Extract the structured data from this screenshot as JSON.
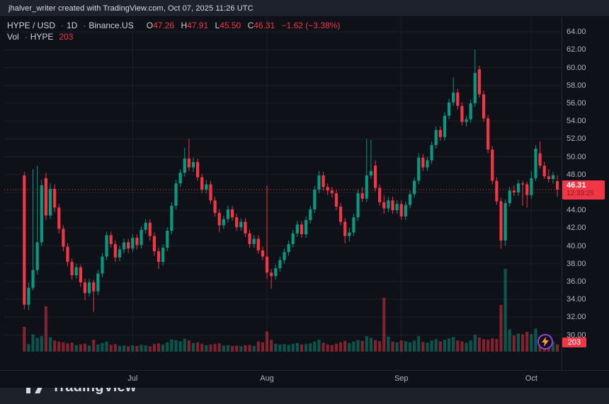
{
  "app": {
    "attribution": "jhalver_writer created with TradingView.com, Oct 07, 2025 11:26 UTC"
  },
  "legend": {
    "symbol": "HYPE / USD",
    "separator": "·",
    "interval": "1D",
    "exchange": "Binance.US",
    "ohlc": {
      "o_label": "O",
      "o": "47.26",
      "h_label": "H",
      "h": "47.91",
      "l_label": "L",
      "l": "45.50",
      "c_label": "C",
      "c": "46.31",
      "change": "−1.62 (−3.38%)"
    },
    "volume_row": {
      "label": "Vol",
      "separator": "·",
      "symbol": "HYPE",
      "value": "203"
    }
  },
  "price_scale": {
    "labels": [
      "64.00",
      "62.00",
      "60.00",
      "58.00",
      "56.00",
      "54.00",
      "52.00",
      "50.00",
      "48.00",
      "46.00",
      "44.00",
      "42.00",
      "40.00",
      "38.00",
      "36.00",
      "34.00",
      "32.00",
      "30.00"
    ],
    "last_price_label": "46.31",
    "countdown": "12:33:25",
    "volume_badge": "203"
  },
  "footer": {
    "brand": "TradingView"
  },
  "colors": {
    "up": "#089981",
    "down": "#f23645",
    "accent_red": "#f23645",
    "bg_chart": "#0e1117",
    "bg_chrome": "#1e222d",
    "text_primary": "#d1d4dc",
    "text_secondary": "#b2b5be",
    "grid": "#1b2029",
    "bolt_ring": "#9045d6",
    "bolt_fill": "#ff9d3c"
  },
  "chart_data": {
    "type": "candlestick",
    "title": "HYPE / USD · 1D · Binance.US",
    "symbol": "HYPE/USD",
    "interval": "1D",
    "exchange": "Binance.US",
    "legend_note": "volume pane overlaid at bottom",
    "last_price_line": 46.31,
    "last_candle": {
      "open": 47.26,
      "high": 47.91,
      "low": 45.5,
      "close": 46.31,
      "change": -1.62,
      "change_pct": -3.38,
      "volume": 203,
      "countdown": "12:33:25"
    },
    "price_axis": {
      "ticks": [
        64,
        62,
        60,
        58,
        56,
        54,
        52,
        50,
        48,
        46,
        44,
        42,
        40,
        38,
        36,
        34,
        32,
        30
      ],
      "grid": true
    },
    "time_axis": {
      "month_ticks": [
        {
          "label": "Jul",
          "index": 25
        },
        {
          "label": "Aug",
          "index": 56
        },
        {
          "label": "Sep",
          "index": 87
        },
        {
          "label": "Oct",
          "index": 117
        }
      ]
    },
    "columns": [
      "date",
      "open",
      "high",
      "low",
      "close",
      "volume"
    ],
    "candles": [
      [
        "06-06",
        47.9,
        48.3,
        32.9,
        33.4,
        690
      ],
      [
        "06-07",
        33.4,
        35.9,
        32.8,
        35.3,
        210
      ],
      [
        "06-08",
        35.3,
        48.6,
        35.0,
        37.3,
        480
      ],
      [
        "06-09",
        37.3,
        49.0,
        36.8,
        40.4,
        380
      ],
      [
        "06-10",
        40.4,
        47.4,
        40.0,
        46.8,
        430
      ],
      [
        "06-11",
        47.6,
        48.2,
        42.9,
        43.4,
        1260
      ],
      [
        "06-12",
        43.4,
        47.0,
        43.0,
        46.4,
        400
      ],
      [
        "06-13",
        46.4,
        46.9,
        43.8,
        44.3,
        310
      ],
      [
        "06-14",
        44.3,
        44.7,
        41.4,
        41.9,
        280
      ],
      [
        "06-15",
        41.9,
        42.3,
        39.4,
        39.9,
        260
      ],
      [
        "06-16",
        39.9,
        40.3,
        37.7,
        38.2,
        230
      ],
      [
        "06-17",
        38.2,
        38.6,
        36.2,
        36.7,
        250
      ],
      [
        "06-18",
        36.7,
        38.0,
        36.3,
        37.6,
        180
      ],
      [
        "06-19",
        37.6,
        37.9,
        35.4,
        35.9,
        200
      ],
      [
        "06-20",
        35.9,
        36.3,
        33.9,
        34.7,
        220
      ],
      [
        "06-21",
        34.7,
        36.3,
        34.3,
        35.9,
        170
      ],
      [
        "06-22",
        35.9,
        36.2,
        32.6,
        34.9,
        330
      ],
      [
        "06-23",
        34.9,
        37.3,
        34.5,
        36.9,
        200
      ],
      [
        "06-24",
        36.9,
        39.2,
        36.5,
        38.8,
        240
      ],
      [
        "06-25",
        38.8,
        41.6,
        38.4,
        41.2,
        280
      ],
      [
        "06-26",
        41.2,
        41.6,
        39.8,
        40.2,
        190
      ],
      [
        "06-27",
        40.2,
        40.6,
        38.2,
        38.7,
        210
      ],
      [
        "06-28",
        38.7,
        40.0,
        38.3,
        39.6,
        160
      ],
      [
        "06-29",
        39.6,
        40.8,
        39.2,
        40.4,
        170
      ],
      [
        "06-30",
        40.4,
        40.8,
        39.2,
        39.7,
        150
      ],
      [
        "07-01",
        39.7,
        41.3,
        39.3,
        40.9,
        180
      ],
      [
        "07-02",
        40.9,
        41.3,
        39.6,
        40.1,
        160
      ],
      [
        "07-03",
        40.1,
        42.2,
        39.7,
        41.8,
        190
      ],
      [
        "07-04",
        41.8,
        43.0,
        41.4,
        42.6,
        170
      ],
      [
        "07-05",
        42.6,
        43.0,
        40.6,
        41.1,
        150
      ],
      [
        "07-06",
        41.1,
        41.5,
        38.9,
        39.4,
        210
      ],
      [
        "07-07",
        39.4,
        39.8,
        37.4,
        38.2,
        230
      ],
      [
        "07-08",
        38.2,
        40.2,
        37.8,
        39.8,
        200
      ],
      [
        "07-09",
        39.8,
        42.1,
        39.4,
        41.7,
        260
      ],
      [
        "07-10",
        41.7,
        44.9,
        41.3,
        44.5,
        340
      ],
      [
        "07-11",
        44.5,
        47.4,
        44.1,
        47.0,
        320
      ],
      [
        "07-12",
        47.0,
        48.6,
        46.6,
        48.2,
        290
      ],
      [
        "07-13",
        48.2,
        51.0,
        47.8,
        49.8,
        360
      ],
      [
        "07-14",
        49.8,
        52.0,
        48.4,
        48.8,
        310
      ],
      [
        "07-15",
        48.8,
        49.9,
        48.3,
        49.4,
        240
      ],
      [
        "07-16",
        49.4,
        49.8,
        47.3,
        47.7,
        260
      ],
      [
        "07-17",
        47.7,
        48.1,
        45.9,
        46.3,
        220
      ],
      [
        "07-18",
        46.3,
        47.4,
        45.9,
        46.9,
        180
      ],
      [
        "07-19",
        46.9,
        47.3,
        44.7,
        45.1,
        200
      ],
      [
        "07-20",
        45.1,
        45.5,
        43.3,
        43.7,
        210
      ],
      [
        "07-21",
        43.7,
        44.1,
        41.5,
        42.3,
        230
      ],
      [
        "07-22",
        42.3,
        43.4,
        41.9,
        43.0,
        170
      ],
      [
        "07-23",
        43.0,
        44.5,
        42.6,
        44.1,
        180
      ],
      [
        "07-24",
        44.1,
        44.5,
        42.8,
        43.2,
        160
      ],
      [
        "07-25",
        43.2,
        43.6,
        41.7,
        42.1,
        170
      ],
      [
        "07-26",
        42.1,
        43.1,
        41.7,
        42.7,
        150
      ],
      [
        "07-27",
        42.7,
        43.1,
        41.0,
        41.4,
        180
      ],
      [
        "07-28",
        41.4,
        41.8,
        39.8,
        40.2,
        190
      ],
      [
        "07-29",
        40.2,
        41.2,
        39.8,
        40.8,
        160
      ],
      [
        "07-30",
        40.8,
        41.2,
        39.1,
        39.5,
        280
      ],
      [
        "07-31",
        39.5,
        39.9,
        38.4,
        38.8,
        260
      ],
      [
        "08-01",
        38.8,
        46.8,
        36.3,
        37.0,
        560
      ],
      [
        "08-02",
        37.0,
        37.4,
        35.2,
        36.6,
        330
      ],
      [
        "08-03",
        36.6,
        37.9,
        36.2,
        37.5,
        220
      ],
      [
        "08-04",
        37.5,
        38.8,
        37.1,
        38.4,
        200
      ],
      [
        "08-05",
        38.4,
        39.7,
        38.0,
        39.3,
        210
      ],
      [
        "08-06",
        39.3,
        40.6,
        38.9,
        40.2,
        190
      ],
      [
        "08-07",
        40.2,
        41.8,
        39.8,
        41.4,
        220
      ],
      [
        "08-08",
        41.4,
        42.8,
        41.0,
        42.4,
        240
      ],
      [
        "08-09",
        42.4,
        42.8,
        40.9,
        41.3,
        200
      ],
      [
        "08-10",
        41.3,
        43.3,
        40.9,
        42.9,
        210
      ],
      [
        "08-11",
        42.9,
        44.5,
        42.5,
        44.1,
        230
      ],
      [
        "08-12",
        44.1,
        46.7,
        43.7,
        46.3,
        280
      ],
      [
        "08-13",
        46.3,
        48.4,
        45.9,
        47.9,
        330
      ],
      [
        "08-14",
        47.9,
        48.3,
        46.2,
        46.6,
        250
      ],
      [
        "08-15",
        46.6,
        47.0,
        45.7,
        46.2,
        200
      ],
      [
        "08-16",
        46.2,
        46.6,
        45.4,
        45.9,
        180
      ],
      [
        "08-17",
        45.9,
        46.3,
        44.0,
        44.4,
        220
      ],
      [
        "08-18",
        44.4,
        44.8,
        42.3,
        42.7,
        260
      ],
      [
        "08-19",
        42.7,
        43.1,
        40.3,
        41.1,
        300
      ],
      [
        "08-20",
        41.1,
        42.0,
        40.5,
        41.5,
        240
      ],
      [
        "08-21",
        41.5,
        43.6,
        41.1,
        43.2,
        280
      ],
      [
        "08-22",
        43.2,
        46.3,
        42.8,
        45.9,
        320
      ],
      [
        "08-23",
        45.9,
        46.6,
        44.9,
        45.3,
        300
      ],
      [
        "08-24",
        45.3,
        52.0,
        44.9,
        47.9,
        430
      ],
      [
        "08-25",
        47.9,
        51.9,
        47.5,
        48.4,
        380
      ],
      [
        "08-26",
        49.0,
        49.6,
        46.1,
        46.5,
        320
      ],
      [
        "08-27",
        46.5,
        46.9,
        44.5,
        44.9,
        290
      ],
      [
        "08-28",
        44.9,
        45.7,
        43.6,
        44.2,
        1500
      ],
      [
        "08-29",
        44.2,
        45.5,
        43.8,
        45.1,
        420
      ],
      [
        "08-30",
        45.1,
        45.5,
        43.6,
        44.0,
        280
      ],
      [
        "08-31",
        44.0,
        45.1,
        43.6,
        44.7,
        260
      ],
      [
        "09-01",
        44.7,
        45.1,
        42.9,
        43.3,
        310
      ],
      [
        "09-02",
        43.3,
        45.0,
        42.9,
        44.6,
        290
      ],
      [
        "09-03",
        44.6,
        46.2,
        44.2,
        45.8,
        260
      ],
      [
        "09-04",
        45.8,
        47.7,
        45.4,
        47.3,
        310
      ],
      [
        "09-05",
        47.3,
        50.4,
        46.9,
        49.9,
        430
      ],
      [
        "09-06",
        49.9,
        50.3,
        48.4,
        48.8,
        270
      ],
      [
        "09-07",
        48.8,
        50.0,
        48.4,
        49.6,
        250
      ],
      [
        "09-08",
        49.6,
        51.7,
        49.2,
        51.3,
        310
      ],
      [
        "09-09",
        51.3,
        53.4,
        50.9,
        53.0,
        350
      ],
      [
        "09-10",
        53.0,
        53.4,
        51.8,
        52.2,
        290
      ],
      [
        "09-11",
        52.2,
        55.0,
        51.8,
        54.6,
        330
      ],
      [
        "09-12",
        54.6,
        56.5,
        54.2,
        56.1,
        370
      ],
      [
        "09-13",
        56.1,
        58.9,
        55.7,
        57.2,
        410
      ],
      [
        "09-14",
        57.2,
        57.6,
        55.3,
        55.7,
        310
      ],
      [
        "09-15",
        55.7,
        56.1,
        53.5,
        53.9,
        290
      ],
      [
        "09-16",
        53.9,
        54.6,
        53.4,
        54.2,
        250
      ],
      [
        "09-17",
        54.2,
        56.4,
        53.8,
        56.0,
        310
      ],
      [
        "09-18",
        56.0,
        62.0,
        55.6,
        59.4,
        470
      ],
      [
        "09-19",
        59.8,
        60.2,
        56.6,
        57.0,
        390
      ],
      [
        "09-20",
        57.0,
        57.4,
        53.9,
        54.3,
        350
      ],
      [
        "09-21",
        54.3,
        54.7,
        50.4,
        50.8,
        330
      ],
      [
        "09-22",
        50.8,
        51.2,
        46.9,
        47.3,
        370
      ],
      [
        "09-23",
        47.3,
        47.7,
        44.6,
        45.0,
        350
      ],
      [
        "09-24",
        45.0,
        45.4,
        39.7,
        40.6,
        1300
      ],
      [
        "09-25",
        40.6,
        45.2,
        40.0,
        44.8,
        2300
      ],
      [
        "09-26",
        44.8,
        46.6,
        44.4,
        46.2,
        620
      ],
      [
        "09-27",
        46.2,
        46.8,
        45.6,
        46.0,
        450
      ],
      [
        "09-28",
        46.0,
        47.4,
        45.6,
        47.0,
        500
      ],
      [
        "09-29",
        47.0,
        47.3,
        44.5,
        46.9,
        480
      ],
      [
        "09-30",
        46.9,
        47.2,
        44.3,
        45.7,
        550
      ],
      [
        "10-01",
        45.7,
        48.4,
        45.3,
        47.6,
        490
      ],
      [
        "10-02",
        47.6,
        51.3,
        47.3,
        50.9,
        640
      ],
      [
        "10-03",
        50.4,
        51.7,
        48.7,
        49.0,
        420
      ],
      [
        "10-04",
        49.0,
        49.4,
        47.5,
        47.8,
        350
      ],
      [
        "10-05",
        47.8,
        48.6,
        47.1,
        47.5,
        300
      ],
      [
        "10-06",
        47.5,
        48.3,
        47.0,
        47.93,
        280
      ],
      [
        "10-07",
        47.26,
        47.91,
        45.5,
        46.31,
        203
      ]
    ]
  }
}
